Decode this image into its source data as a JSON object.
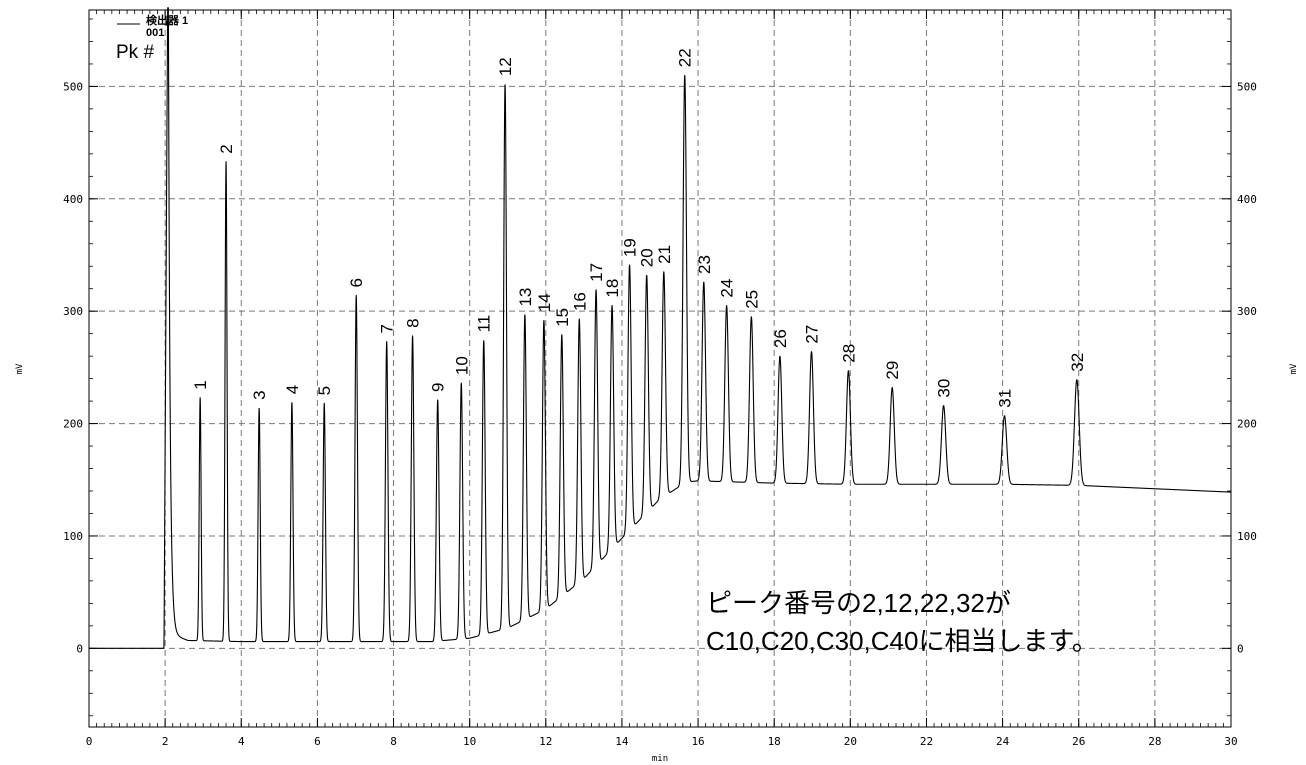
{
  "chart_data": {
    "type": "line",
    "xlabel": "min",
    "ylabel_left": "mV",
    "ylabel_right": "mV",
    "xlim": [
      0,
      30
    ],
    "ylim": [
      -70,
      568
    ],
    "x_ticks": [
      0,
      2,
      4,
      6,
      8,
      10,
      12,
      14,
      16,
      18,
      20,
      22,
      24,
      26,
      28,
      30
    ],
    "y_ticks": [
      0,
      100,
      200,
      300,
      400,
      500
    ],
    "grid": true,
    "legend": {
      "position": "top-left",
      "series_label": "検出器 1",
      "series_sub": "001",
      "peak_header": "Pk #"
    },
    "series": [
      {
        "baseline": [
          [
            0,
            0
          ],
          [
            1.95,
            0
          ],
          [
            2.2,
            12
          ],
          [
            2.6,
            7
          ],
          [
            4,
            6
          ],
          [
            6,
            6
          ],
          [
            8,
            6
          ],
          [
            9,
            6
          ],
          [
            10,
            9
          ],
          [
            11,
            18
          ],
          [
            12,
            35
          ],
          [
            13,
            62
          ],
          [
            14,
            98
          ],
          [
            15,
            133
          ],
          [
            15.7,
            148
          ],
          [
            16,
            149
          ],
          [
            18,
            147
          ],
          [
            20,
            146
          ],
          [
            22,
            146
          ],
          [
            24,
            146
          ],
          [
            26,
            145
          ],
          [
            28,
            142
          ],
          [
            30,
            139
          ]
        ]
      }
    ],
    "solvent_peak": {
      "x": 2.08,
      "y": 568
    },
    "peaks": [
      {
        "label": "1",
        "x": 2.92,
        "y": 223
      },
      {
        "label": "2",
        "x": 3.6,
        "y": 433
      },
      {
        "label": "3",
        "x": 4.47,
        "y": 214
      },
      {
        "label": "4",
        "x": 5.33,
        "y": 219
      },
      {
        "label": "5",
        "x": 6.18,
        "y": 218
      },
      {
        "label": "6",
        "x": 7.02,
        "y": 314
      },
      {
        "label": "7",
        "x": 7.82,
        "y": 273
      },
      {
        "label": "8",
        "x": 8.5,
        "y": 278
      },
      {
        "label": "9",
        "x": 9.16,
        "y": 221
      },
      {
        "label": "10",
        "x": 9.78,
        "y": 236
      },
      {
        "label": "11",
        "x": 10.37,
        "y": 274
      },
      {
        "label": "12",
        "x": 10.93,
        "y": 502
      },
      {
        "label": "13",
        "x": 11.45,
        "y": 297
      },
      {
        "label": "14",
        "x": 11.95,
        "y": 292
      },
      {
        "label": "15",
        "x": 12.42,
        "y": 279
      },
      {
        "label": "16",
        "x": 12.88,
        "y": 293
      },
      {
        "label": "17",
        "x": 13.32,
        "y": 319
      },
      {
        "label": "18",
        "x": 13.74,
        "y": 305
      },
      {
        "label": "19",
        "x": 14.2,
        "y": 341
      },
      {
        "label": "20",
        "x": 14.65,
        "y": 332
      },
      {
        "label": "21",
        "x": 15.1,
        "y": 335
      },
      {
        "label": "22",
        "x": 15.65,
        "y": 510
      },
      {
        "label": "23",
        "x": 16.15,
        "y": 326
      },
      {
        "label": "24",
        "x": 16.75,
        "y": 305
      },
      {
        "label": "25",
        "x": 17.4,
        "y": 295
      },
      {
        "label": "26",
        "x": 18.15,
        "y": 260
      },
      {
        "label": "27",
        "x": 18.98,
        "y": 264
      },
      {
        "label": "28",
        "x": 19.95,
        "y": 247
      },
      {
        "label": "29",
        "x": 21.1,
        "y": 232
      },
      {
        "label": "30",
        "x": 22.45,
        "y": 216
      },
      {
        "label": "31",
        "x": 24.05,
        "y": 207
      },
      {
        "label": "32",
        "x": 25.95,
        "y": 239
      }
    ],
    "annotation": {
      "lines": [
        "ピーク番号の2,12,22,32が",
        "C10,C20,C30,C40に相当します。"
      ]
    }
  }
}
